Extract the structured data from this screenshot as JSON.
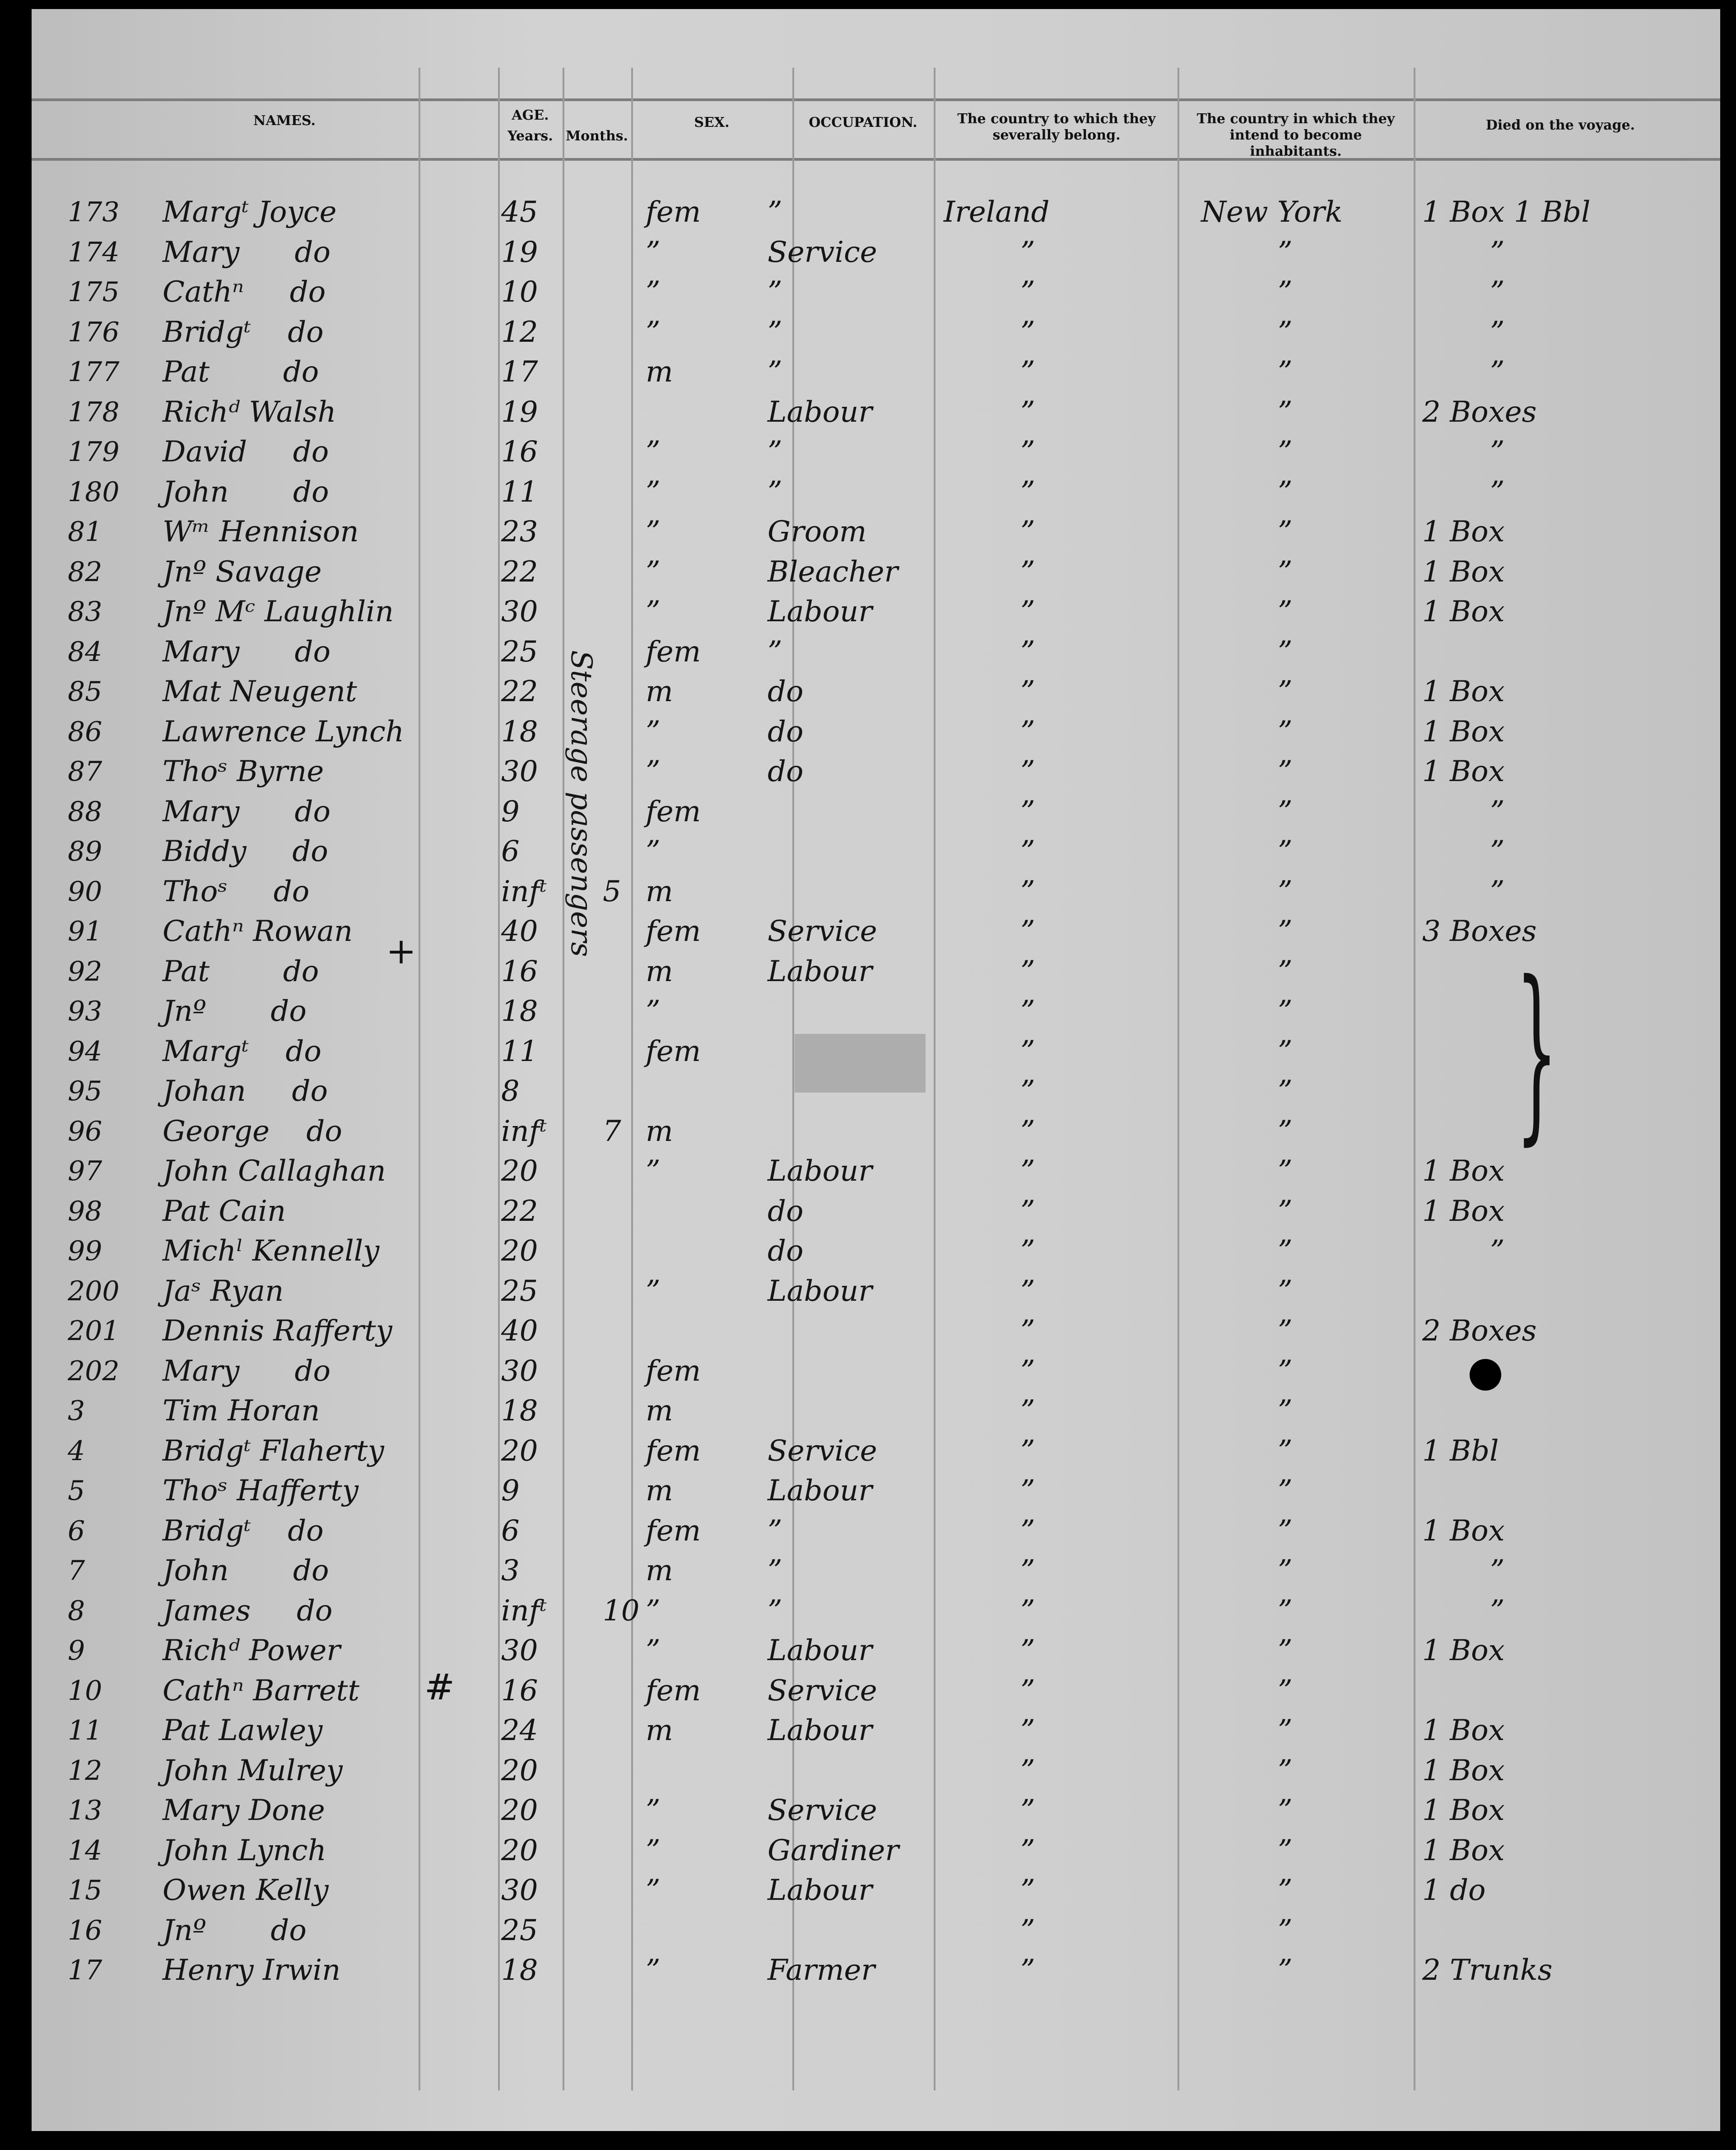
{
  "headers": {
    "names": "NAMES.",
    "age": "AGE.",
    "years": "Years.",
    "months": "Months.",
    "sex": "SEX.",
    "occupation": "OCCUPATION.",
    "country_belong": "The country to which they severally belong.",
    "country_intend": "The country in which they intend to become inhabitants.",
    "died": "Died on the voyage."
  },
  "margin_note": "Steerage passengers",
  "rows": [
    {
      "num": "173",
      "name": "Margᵗ Joyce",
      "years": "45",
      "months": "",
      "sex": "fem",
      "occupation": "”",
      "country": "Ireland",
      "intend": "New York",
      "died": "1 Box 1 Bbl"
    },
    {
      "num": "174",
      "name": "Mary      do",
      "years": "19",
      "months": "",
      "sex": "”",
      "occupation": "Service",
      "country": "”",
      "intend": "”",
      "died": "”"
    },
    {
      "num": "175",
      "name": "Cathⁿ     do",
      "years": "10",
      "months": "",
      "sex": "”",
      "occupation": "”",
      "country": "”",
      "intend": "”",
      "died": "”"
    },
    {
      "num": "176",
      "name": "Bridgᵗ    do",
      "years": "12",
      "months": "",
      "sex": "”",
      "occupation": "”",
      "country": "”",
      "intend": "”",
      "died": "”"
    },
    {
      "num": "177",
      "name": "Pat        do",
      "years": "17",
      "months": "",
      "sex": "m",
      "occupation": "”",
      "country": "”",
      "intend": "”",
      "died": "”"
    },
    {
      "num": "178",
      "name": "Richᵈ Walsh",
      "years": "19",
      "months": "",
      "sex": "",
      "occupation": "Labour",
      "country": "”",
      "intend": "”",
      "died": "2 Boxes"
    },
    {
      "num": "179",
      "name": "David     do",
      "years": "16",
      "months": "",
      "sex": "”",
      "occupation": "”",
      "country": "”",
      "intend": "”",
      "died": "”"
    },
    {
      "num": "180",
      "name": "John       do",
      "years": "11",
      "months": "",
      "sex": "”",
      "occupation": "”",
      "country": "”",
      "intend": "”",
      "died": "”"
    },
    {
      "num": "81",
      "name": "Wᵐ Hennison",
      "years": "23",
      "months": "",
      "sex": "”",
      "occupation": "Groom",
      "country": "”",
      "intend": "”",
      "died": "1 Box"
    },
    {
      "num": "82",
      "name": "Jnº Savage",
      "years": "22",
      "months": "",
      "sex": "”",
      "occupation": "Bleacher",
      "country": "”",
      "intend": "”",
      "died": "1 Box"
    },
    {
      "num": "83",
      "name": "Jnº Mᶜ Laughlin",
      "years": "30",
      "months": "",
      "sex": "”",
      "occupation": "Labour",
      "country": "”",
      "intend": "”",
      "died": "1 Box"
    },
    {
      "num": "84",
      "name": "Mary      do",
      "years": "25",
      "months": "",
      "sex": "fem",
      "occupation": "”",
      "country": "”",
      "intend": "”",
      "died": ""
    },
    {
      "num": "85",
      "name": "Mat Neugent",
      "years": "22",
      "months": "",
      "sex": "m",
      "occupation": "do",
      "country": "”",
      "intend": "”",
      "died": "1 Box"
    },
    {
      "num": "86",
      "name": "Lawrence Lynch",
      "years": "18",
      "months": "",
      "sex": "”",
      "occupation": "do",
      "country": "”",
      "intend": "”",
      "died": "1 Box"
    },
    {
      "num": "87",
      "name": "Thoˢ Byrne",
      "years": "30",
      "months": "",
      "sex": "”",
      "occupation": "do",
      "country": "”",
      "intend": "”",
      "died": "1 Box"
    },
    {
      "num": "88",
      "name": "Mary      do",
      "years": "9",
      "months": "",
      "sex": "fem",
      "occupation": "",
      "country": "”",
      "intend": "”",
      "died": "”"
    },
    {
      "num": "89",
      "name": "Biddy     do",
      "years": "6",
      "months": "",
      "sex": "”",
      "occupation": "",
      "country": "”",
      "intend": "”",
      "died": "”"
    },
    {
      "num": "90",
      "name": "Thoˢ     do",
      "years": "infᵗ",
      "months": "5",
      "sex": "m",
      "occupation": "",
      "country": "”",
      "intend": "”",
      "died": "”"
    },
    {
      "num": "91",
      "name": "Cathⁿ Rowan",
      "years": "40",
      "months": "",
      "sex": "fem",
      "occupation": "Service",
      "country": "”",
      "intend": "”",
      "died": "3 Boxes"
    },
    {
      "num": "92",
      "name": "Pat        do",
      "years": "16",
      "months": "",
      "sex": "m",
      "occupation": "Labour",
      "country": "”",
      "intend": "”",
      "died": ""
    },
    {
      "num": "93",
      "name": "Jnº       do",
      "years": "18",
      "months": "",
      "sex": "”",
      "occupation": "",
      "country": "”",
      "intend": "”",
      "died": ""
    },
    {
      "num": "94",
      "name": "Margᵗ    do",
      "years": "11",
      "months": "",
      "sex": "fem",
      "occupation": "",
      "country": "”",
      "intend": "”",
      "died": ""
    },
    {
      "num": "95",
      "name": "Johan     do",
      "years": "8",
      "months": "",
      "sex": "",
      "occupation": "",
      "country": "”",
      "intend": "”",
      "died": ""
    },
    {
      "num": "96",
      "name": "George    do",
      "years": "infᵗ",
      "months": "7",
      "sex": "m",
      "occupation": "",
      "country": "”",
      "intend": "”",
      "died": ""
    },
    {
      "num": "97",
      "name": "John Callaghan",
      "years": "20",
      "months": "",
      "sex": "”",
      "occupation": "Labour",
      "country": "”",
      "intend": "”",
      "died": "1 Box"
    },
    {
      "num": "98",
      "name": "Pat Cain",
      "years": "22",
      "months": "",
      "sex": "",
      "occupation": "do",
      "country": "”",
      "intend": "”",
      "died": "1 Box"
    },
    {
      "num": "99",
      "name": "Michˡ Kennelly",
      "years": "20",
      "months": "",
      "sex": "",
      "occupation": "do",
      "country": "”",
      "intend": "”",
      "died": "”"
    },
    {
      "num": "200",
      "name": "Jaˢ Ryan",
      "years": "25",
      "months": "",
      "sex": "”",
      "occupation": "Labour",
      "country": "”",
      "intend": "”",
      "died": ""
    },
    {
      "num": "201",
      "name": "Dennis Rafferty",
      "years": "40",
      "months": "",
      "sex": "",
      "occupation": "",
      "country": "”",
      "intend": "”",
      "died": "2 Boxes"
    },
    {
      "num": "202",
      "name": "Mary      do",
      "years": "30",
      "months": "",
      "sex": "fem",
      "occupation": "",
      "country": "”",
      "intend": "”",
      "died": ""
    },
    {
      "num": "3",
      "name": "Tim Horan",
      "years": "18",
      "months": "",
      "sex": "m",
      "occupation": "",
      "country": "”",
      "intend": "”",
      "died": ""
    },
    {
      "num": "4",
      "name": "Bridgᵗ Flaherty",
      "years": "20",
      "months": "",
      "sex": "fem",
      "occupation": "Service",
      "country": "”",
      "intend": "”",
      "died": "1 Bbl"
    },
    {
      "num": "5",
      "name": "Thoˢ Hafferty",
      "years": "9",
      "months": "",
      "sex": "m",
      "occupation": "Labour",
      "country": "”",
      "intend": "”",
      "died": ""
    },
    {
      "num": "6",
      "name": "Bridgᵗ    do",
      "years": "6",
      "months": "",
      "sex": "fem",
      "occupation": "”",
      "country": "”",
      "intend": "”",
      "died": "1 Box"
    },
    {
      "num": "7",
      "name": "John       do",
      "years": "3",
      "months": "",
      "sex": "m",
      "occupation": "”",
      "country": "”",
      "intend": "”",
      "died": "”"
    },
    {
      "num": "8",
      "name": "James     do",
      "years": "infᵗ",
      "months": "10",
      "sex": "”",
      "occupation": "”",
      "country": "”",
      "intend": "”",
      "died": "”"
    },
    {
      "num": "9",
      "name": "Richᵈ Power",
      "years": "30",
      "months": "",
      "sex": "”",
      "occupation": "Labour",
      "country": "”",
      "intend": "”",
      "died": "1 Box"
    },
    {
      "num": "10",
      "name": "Cathⁿ Barrett",
      "years": "16",
      "months": "",
      "sex": "fem",
      "occupation": "Service",
      "country": "”",
      "intend": "”",
      "died": ""
    },
    {
      "num": "11",
      "name": "Pat Lawley",
      "years": "24",
      "months": "",
      "sex": "m",
      "occupation": "Labour",
      "country": "”",
      "intend": "”",
      "died": "1 Box"
    },
    {
      "num": "12",
      "name": "John Mulrey",
      "years": "20",
      "months": "",
      "sex": "",
      "occupation": "",
      "country": "”",
      "intend": "”",
      "died": "1 Box"
    },
    {
      "num": "13",
      "name": "Mary Done",
      "years": "20",
      "months": "",
      "sex": "”",
      "occupation": "Service",
      "country": "”",
      "intend": "”",
      "died": "1 Box"
    },
    {
      "num": "14",
      "name": "John Lynch",
      "years": "20",
      "months": "",
      "sex": "”",
      "occupation": "Gardiner",
      "country": "”",
      "intend": "”",
      "died": "1 Box"
    },
    {
      "num": "15",
      "name": "Owen Kelly",
      "years": "30",
      "months": "",
      "sex": "”",
      "occupation": "Labour",
      "country": "”",
      "intend": "”",
      "died": "1 do"
    },
    {
      "num": "16",
      "name": "Jnº       do",
      "years": "25",
      "months": "",
      "sex": "",
      "occupation": "",
      "country": "”",
      "intend": "”",
      "died": ""
    },
    {
      "num": "17",
      "name": "Henry Irwin",
      "years": "18",
      "months": "",
      "sex": "”",
      "occupation": "Farmer",
      "country": "”",
      "intend": "”",
      "died": "2 Trunks"
    }
  ]
}
